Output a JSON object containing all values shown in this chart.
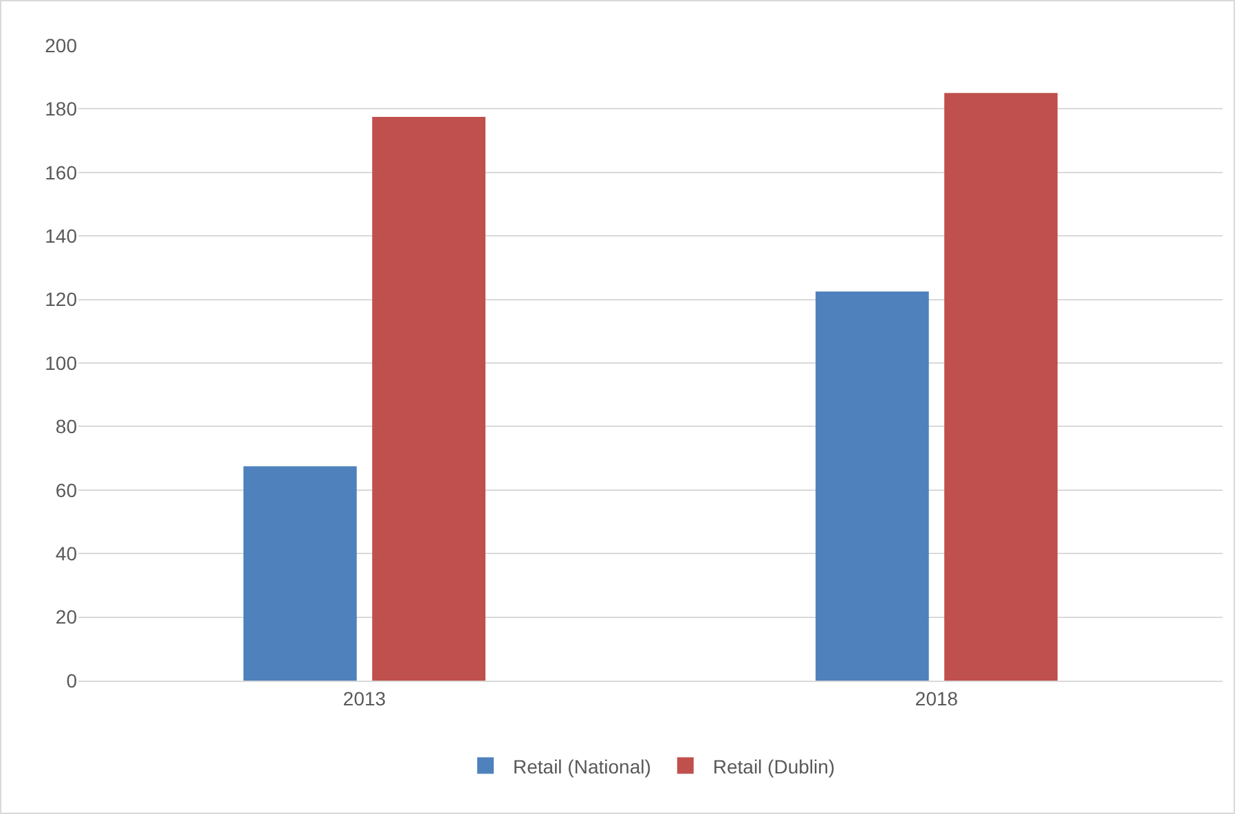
{
  "chart_data": {
    "type": "bar",
    "categories": [
      "2013",
      "2018"
    ],
    "series": [
      {
        "name": "Retail (National)",
        "color": "#4f81bd",
        "values": [
          67.5,
          122.5
        ]
      },
      {
        "name": "Retail (Dublin)",
        "color": "#c0504d",
        "values": [
          177.5,
          185
        ]
      }
    ],
    "ylim": [
      0,
      200
    ],
    "yticks": [
      0,
      20,
      40,
      60,
      80,
      100,
      120,
      140,
      160,
      180,
      200
    ],
    "grid": "y",
    "legend": "bottom"
  }
}
